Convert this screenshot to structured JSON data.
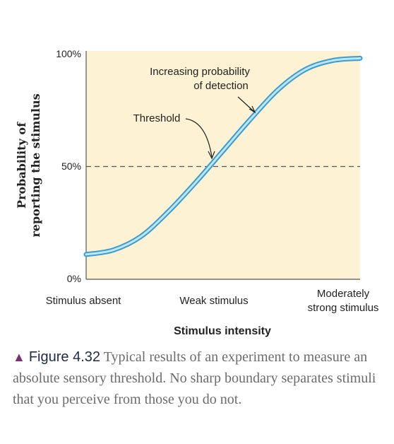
{
  "chart_data": {
    "type": "line",
    "ylabel_line1": "Probability of",
    "ylabel_line2": "reporting the stimulus",
    "xlabel": "Stimulus intensity",
    "y_ticks": [
      "100%",
      "50%",
      "0%"
    ],
    "x_ticks": [
      {
        "lines": [
          "Stimulus absent"
        ]
      },
      {
        "lines": [
          "Weak stimulus"
        ]
      },
      {
        "lines": [
          "Moderately",
          "strong stimulus"
        ]
      }
    ],
    "ylim": [
      0,
      100
    ],
    "xlim": [
      0,
      2
    ],
    "threshold_y": 50,
    "series": [
      {
        "x": [
          0,
          0.2,
          0.4,
          0.6,
          0.8,
          1.0,
          1.2,
          1.4,
          1.6,
          1.8,
          2.0
        ],
        "values": [
          11,
          13,
          19,
          30,
          43,
          57,
          71,
          84,
          93,
          97,
          98
        ]
      }
    ],
    "annotations": [
      {
        "lines": [
          "Increasing probability",
          "of detection"
        ]
      },
      {
        "lines": [
          "Threshold"
        ]
      }
    ],
    "grid": false,
    "colors": {
      "plot_bg": "#fdf2d3",
      "curve_outer": "#3a9ccf",
      "curve_inner": "#bfe6f6",
      "axis": "#555555",
      "text": "#222222"
    }
  },
  "caption": {
    "marker": "▲",
    "figure_label": "Figure 4.32",
    "text": "Typical results of an experiment to measure an absolute sensory threshold. No sharp boundary separates stimuli that you perceive from those you do not."
  }
}
